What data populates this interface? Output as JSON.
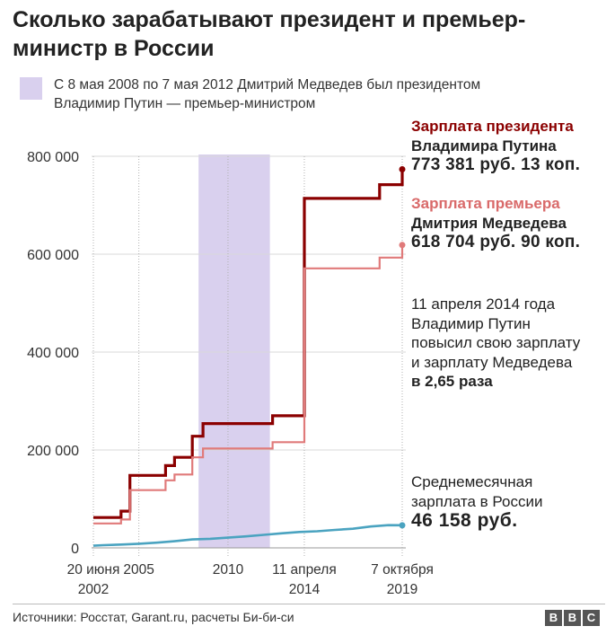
{
  "title": "Сколько зарабатывают президент и премьер-министр в России",
  "legend": {
    "line1": "С 8 мая 2008 по 7 мая 2012 Дмитрий Медведев был президентом",
    "line2": "Владимир Путин — премьер-министром"
  },
  "notes": {
    "president": {
      "line1": "Зарплата президента",
      "line2": "Владимира Путина",
      "value": "773 381 руб. 13 коп."
    },
    "premier": {
      "line1": "Зарплата премьера",
      "line2": "Дмитрия Медведева",
      "value": "618 704 руб. 90 коп."
    },
    "raise": {
      "line1": "11 апреля 2014 года",
      "line2": "Владимир Путин",
      "line3": "повысил свою зарплату",
      "line4": "и зарплату Медведева",
      "line5": "в 2,65 раза"
    },
    "average": {
      "line1": "Среднемесячная",
      "line2": "зарплата в России",
      "value": "46 158 руб."
    }
  },
  "source": "Источники: Росстат, Garant.ru, расчеты Би-би-си",
  "brand": [
    "B",
    "B",
    "C"
  ],
  "colors": {
    "president": "#8b0000",
    "premier": "#e07a7a",
    "average": "#4aa3c0",
    "band": "#d9d0ee"
  },
  "chart_data": {
    "type": "line",
    "title": "Сколько зарабатывают президент и премьер-министр в России",
    "xlabel": "",
    "ylabel": "",
    "xlim": [
      2002.45,
      2019.77
    ],
    "ylim": [
      0,
      800000
    ],
    "yticks": [
      0,
      200000,
      400000,
      600000,
      800000
    ],
    "ytick_labels": [
      "0",
      "200 000",
      "400 000",
      "600 000",
      "800 000"
    ],
    "xticks": [
      {
        "x": 2002.45,
        "line1": "20 июня",
        "line2": "2002"
      },
      {
        "x": 2005.0,
        "line1": "2005",
        "line2": ""
      },
      {
        "x": 2010.0,
        "line1": "2010",
        "line2": ""
      },
      {
        "x": 2014.28,
        "line1": "11 апреля",
        "line2": "2014"
      },
      {
        "x": 2019.77,
        "line1": "7 октября",
        "line2": "2019"
      }
    ],
    "grid": "vertical dotted lines at labeled dates",
    "band": {
      "from": 2008.35,
      "to": 2012.35
    },
    "series": [
      {
        "key": "president",
        "step": true,
        "points": [
          [
            2002.45,
            62000
          ],
          [
            2004.0,
            62000
          ],
          [
            2004.0,
            75000
          ],
          [
            2004.5,
            75000
          ],
          [
            2004.5,
            148000
          ],
          [
            2006.5,
            148000
          ],
          [
            2006.5,
            168000
          ],
          [
            2007.0,
            168000
          ],
          [
            2007.0,
            185000
          ],
          [
            2008.0,
            185000
          ],
          [
            2008.0,
            228000
          ],
          [
            2008.6,
            228000
          ],
          [
            2008.6,
            254000
          ],
          [
            2012.0,
            254000
          ],
          [
            2012.5,
            254000
          ],
          [
            2012.5,
            270000
          ],
          [
            2014.28,
            270000
          ],
          [
            2014.28,
            714000
          ],
          [
            2018.5,
            714000
          ],
          [
            2018.5,
            742000
          ],
          [
            2019.77,
            742000
          ],
          [
            2019.77,
            773381
          ]
        ]
      },
      {
        "key": "premier",
        "step": true,
        "points": [
          [
            2002.45,
            50000
          ],
          [
            2004.0,
            50000
          ],
          [
            2004.0,
            58000
          ],
          [
            2004.5,
            58000
          ],
          [
            2004.5,
            118000
          ],
          [
            2006.5,
            118000
          ],
          [
            2006.5,
            138000
          ],
          [
            2007.0,
            138000
          ],
          [
            2007.0,
            150000
          ],
          [
            2008.0,
            150000
          ],
          [
            2008.0,
            185000
          ],
          [
            2008.6,
            185000
          ],
          [
            2008.6,
            203000
          ],
          [
            2012.0,
            203000
          ],
          [
            2012.5,
            203000
          ],
          [
            2012.5,
            216000
          ],
          [
            2014.28,
            216000
          ],
          [
            2014.28,
            571000
          ],
          [
            2018.5,
            571000
          ],
          [
            2018.5,
            593000
          ],
          [
            2019.77,
            593000
          ],
          [
            2019.77,
            618705
          ]
        ]
      },
      {
        "key": "average",
        "step": false,
        "points": [
          [
            2002.45,
            4400
          ],
          [
            2003.0,
            5500
          ],
          [
            2004.0,
            6700
          ],
          [
            2005.0,
            8500
          ],
          [
            2006.0,
            10600
          ],
          [
            2007.0,
            13600
          ],
          [
            2008.0,
            17300
          ],
          [
            2009.0,
            18600
          ],
          [
            2010.0,
            21000
          ],
          [
            2011.0,
            23400
          ],
          [
            2012.0,
            26600
          ],
          [
            2013.0,
            29800
          ],
          [
            2014.0,
            32500
          ],
          [
            2015.0,
            34000
          ],
          [
            2016.0,
            36700
          ],
          [
            2017.0,
            39100
          ],
          [
            2018.0,
            43700
          ],
          [
            2019.0,
            46500
          ],
          [
            2019.77,
            46158
          ]
        ]
      }
    ]
  }
}
